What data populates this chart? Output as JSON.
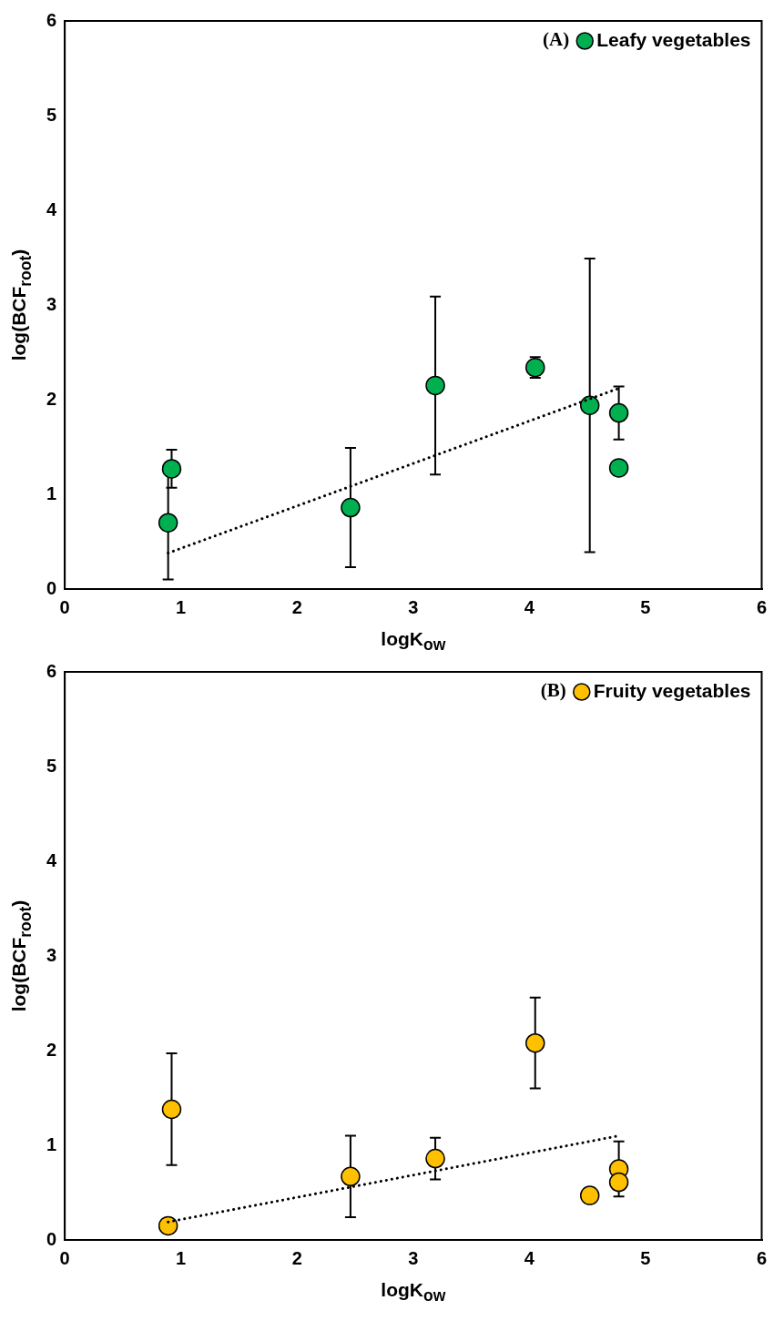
{
  "chart_data": [
    {
      "type": "scatter",
      "xlabel": "logK$_{ow}$",
      "ylabel": "log(BCF$_{root}$)",
      "annotations": [
        "(A)"
      ],
      "xlim": [
        0,
        6
      ],
      "xticks": [
        0,
        1,
        2,
        3,
        4,
        5,
        6
      ],
      "ylim": [
        0,
        6
      ],
      "yticks": [
        0,
        1,
        2,
        3,
        4,
        5,
        6
      ],
      "legend": "top right",
      "marker": "circle",
      "series": [
        {
          "name": "Leafy vegetables",
          "color": "#00b050",
          "x": [
            0.89,
            0.92,
            2.46,
            3.19,
            4.05,
            4.52,
            4.77,
            4.77
          ],
          "values": [
            0.7,
            1.27,
            0.86,
            2.15,
            2.34,
            1.94,
            1.86,
            1.28
          ],
          "errors": [
            0.6,
            0.2,
            0.63,
            0.94,
            0.11,
            1.55,
            0.28,
            null
          ]
        },
        {
          "type": "line",
          "color": "#000000",
          "x": [
            0.89,
            4.77
          ],
          "values": [
            0.38,
            2.12
          ],
          "line_style": "dotted",
          "marker": "none"
        }
      ]
    },
    {
      "type": "scatter",
      "xlabel": "logK$_{ow}$",
      "ylabel": "log(BCF$_{root}$)",
      "annotations": [
        "(B)"
      ],
      "xlim": [
        0,
        6
      ],
      "xticks": [
        0,
        1,
        2,
        3,
        4,
        5,
        6
      ],
      "ylim": [
        0,
        6
      ],
      "yticks": [
        0,
        1,
        2,
        3,
        4,
        5,
        6
      ],
      "legend": "top right",
      "marker": "circle",
      "series": [
        {
          "name": "Fruity vegetables",
          "color": "#ffc000",
          "x": [
            0.92,
            0.89,
            2.46,
            3.19,
            4.05,
            4.52,
            4.77,
            4.77
          ],
          "values": [
            1.38,
            0.15,
            0.67,
            0.86,
            2.08,
            0.47,
            0.75,
            0.61
          ],
          "errors": [
            0.59,
            null,
            0.43,
            0.22,
            0.48,
            null,
            0.29,
            null
          ]
        },
        {
          "type": "line",
          "color": "#000000",
          "x": [
            0.89,
            4.77
          ],
          "values": [
            0.19,
            1.1
          ],
          "line_style": "dotted",
          "marker": "none"
        }
      ]
    }
  ]
}
